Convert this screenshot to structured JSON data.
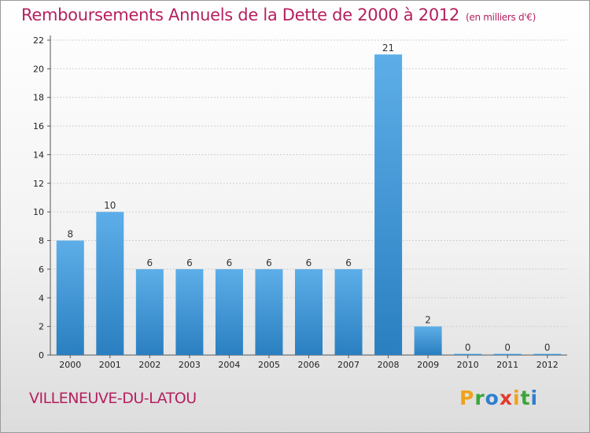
{
  "title": "Remboursements Annuels de la Dette de 2000 à 2012",
  "subtitle": "(en milliers d'€)",
  "commune": "VILLENEUVE-DU-LATOU",
  "logo": {
    "text": "Proxiti",
    "letters": [
      {
        "char": "P",
        "color": "#f0a21a"
      },
      {
        "char": "r",
        "color": "#3aa53a"
      },
      {
        "char": "o",
        "color": "#2e7fcf"
      },
      {
        "char": "x",
        "color": "#e23b2e"
      },
      {
        "char": "i",
        "color": "#f0a21a"
      },
      {
        "char": "t",
        "color": "#3aa53a"
      },
      {
        "char": "i",
        "color": "#2e7fcf"
      }
    ]
  },
  "colors": {
    "accent": "#b5205f",
    "bar_top": "#5daee8",
    "bar_bottom": "#2a7fc0",
    "grid": "#cfcfcf"
  },
  "chart_data": {
    "type": "bar",
    "categories": [
      "2000",
      "2001",
      "2002",
      "2003",
      "2004",
      "2005",
      "2006",
      "2007",
      "2008",
      "2009",
      "2010",
      "2011",
      "2012"
    ],
    "values": [
      8,
      10,
      6,
      6,
      6,
      6,
      6,
      6,
      21,
      2,
      0,
      0,
      0
    ],
    "data_labels": [
      "8",
      "10",
      "6",
      "6",
      "6",
      "6",
      "6",
      "6",
      "21",
      "2",
      "0",
      "0",
      "0"
    ],
    "ylim": [
      0,
      22
    ],
    "yticks": [
      0,
      2,
      4,
      6,
      8,
      10,
      12,
      14,
      16,
      18,
      20,
      22
    ],
    "grid": true,
    "xlabel": "",
    "ylabel": ""
  }
}
